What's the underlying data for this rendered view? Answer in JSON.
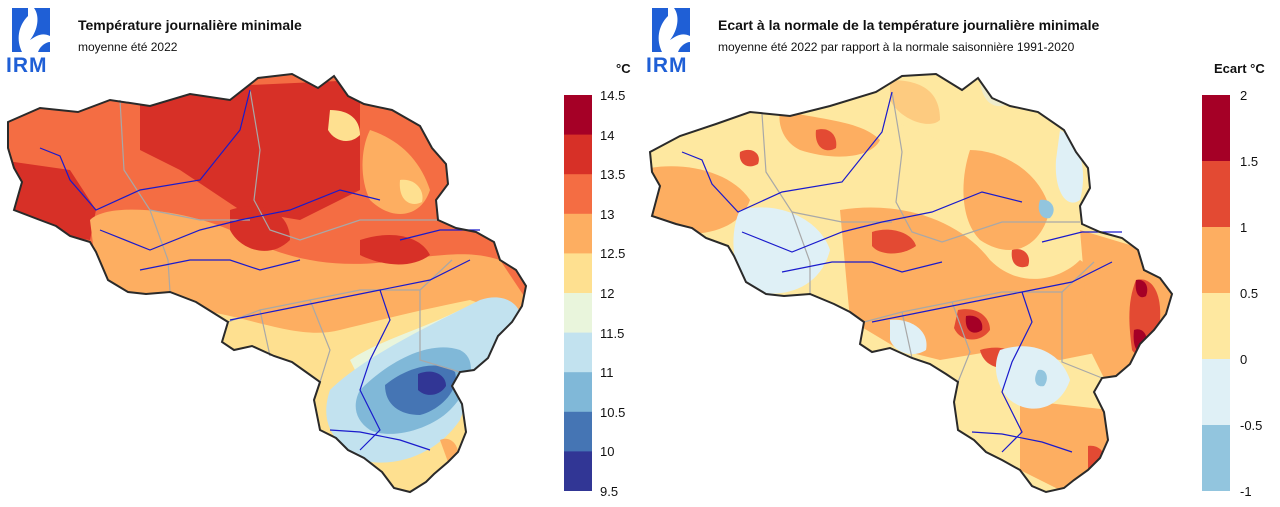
{
  "logo": {
    "text": "IRM"
  },
  "left": {
    "title": "Température journalière minimale",
    "subtitle": "moyenne été 2022",
    "unit": "°C",
    "legend": {
      "ticks": [
        "14.5",
        "14",
        "13.5",
        "13",
        "12.5",
        "12",
        "11.5",
        "11",
        "10.5",
        "10",
        "9.5"
      ],
      "colors": [
        "#a50026",
        "#d73027",
        "#f46d43",
        "#fdae61",
        "#fee090",
        "#e9f5dc",
        "#c2e2ef",
        "#80b8d8",
        "#4575b4",
        "#313695"
      ]
    }
  },
  "right": {
    "title": "Ecart à la normale de la température journalière minimale",
    "subtitle": "moyenne été 2022 par rapport à la normale saisonnière 1991-2020",
    "unit": "Ecart °C",
    "legend": {
      "ticks": [
        "2",
        "1.5",
        "1",
        "0.5",
        "0",
        "-0.5",
        "-1"
      ],
      "colors": [
        "#a50026",
        "#e34a33",
        "#fdae61",
        "#fee8a0",
        "#dff0f6",
        "#92c5de"
      ]
    }
  },
  "colors": {
    "logo_blue": "#1f5fd6",
    "border": "#2a2a2a",
    "rivers": "#1a1acc",
    "provinces": "#a8a8a8"
  }
}
